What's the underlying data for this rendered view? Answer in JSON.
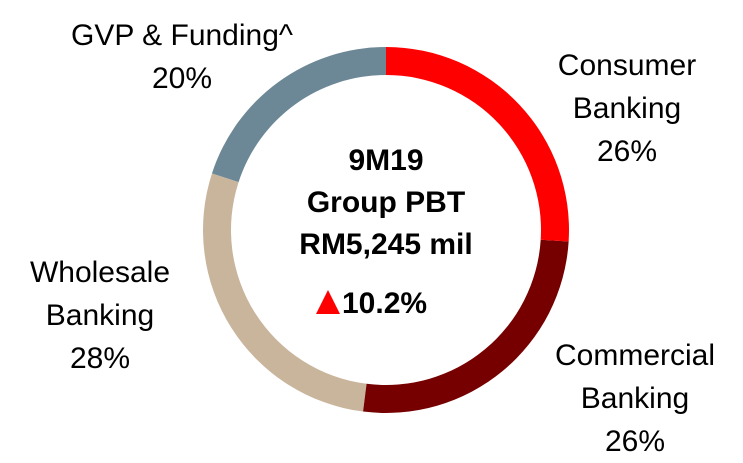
{
  "chart_data": {
    "type": "donut",
    "center_text": [
      "9M19",
      "Group PBT",
      "RM5,245 mil"
    ],
    "change": "10.2%",
    "categories": [
      "Consumer Banking",
      "Commercial Banking",
      "Wholesale Banking",
      "GVP & Funding^"
    ],
    "values": [
      26,
      26,
      28,
      20
    ],
    "value_labels": [
      "26%",
      "26%",
      "28%",
      "20%"
    ],
    "colors": [
      "#ff0000",
      "#760000",
      "#c9b59c",
      "#6c8896"
    ]
  }
}
